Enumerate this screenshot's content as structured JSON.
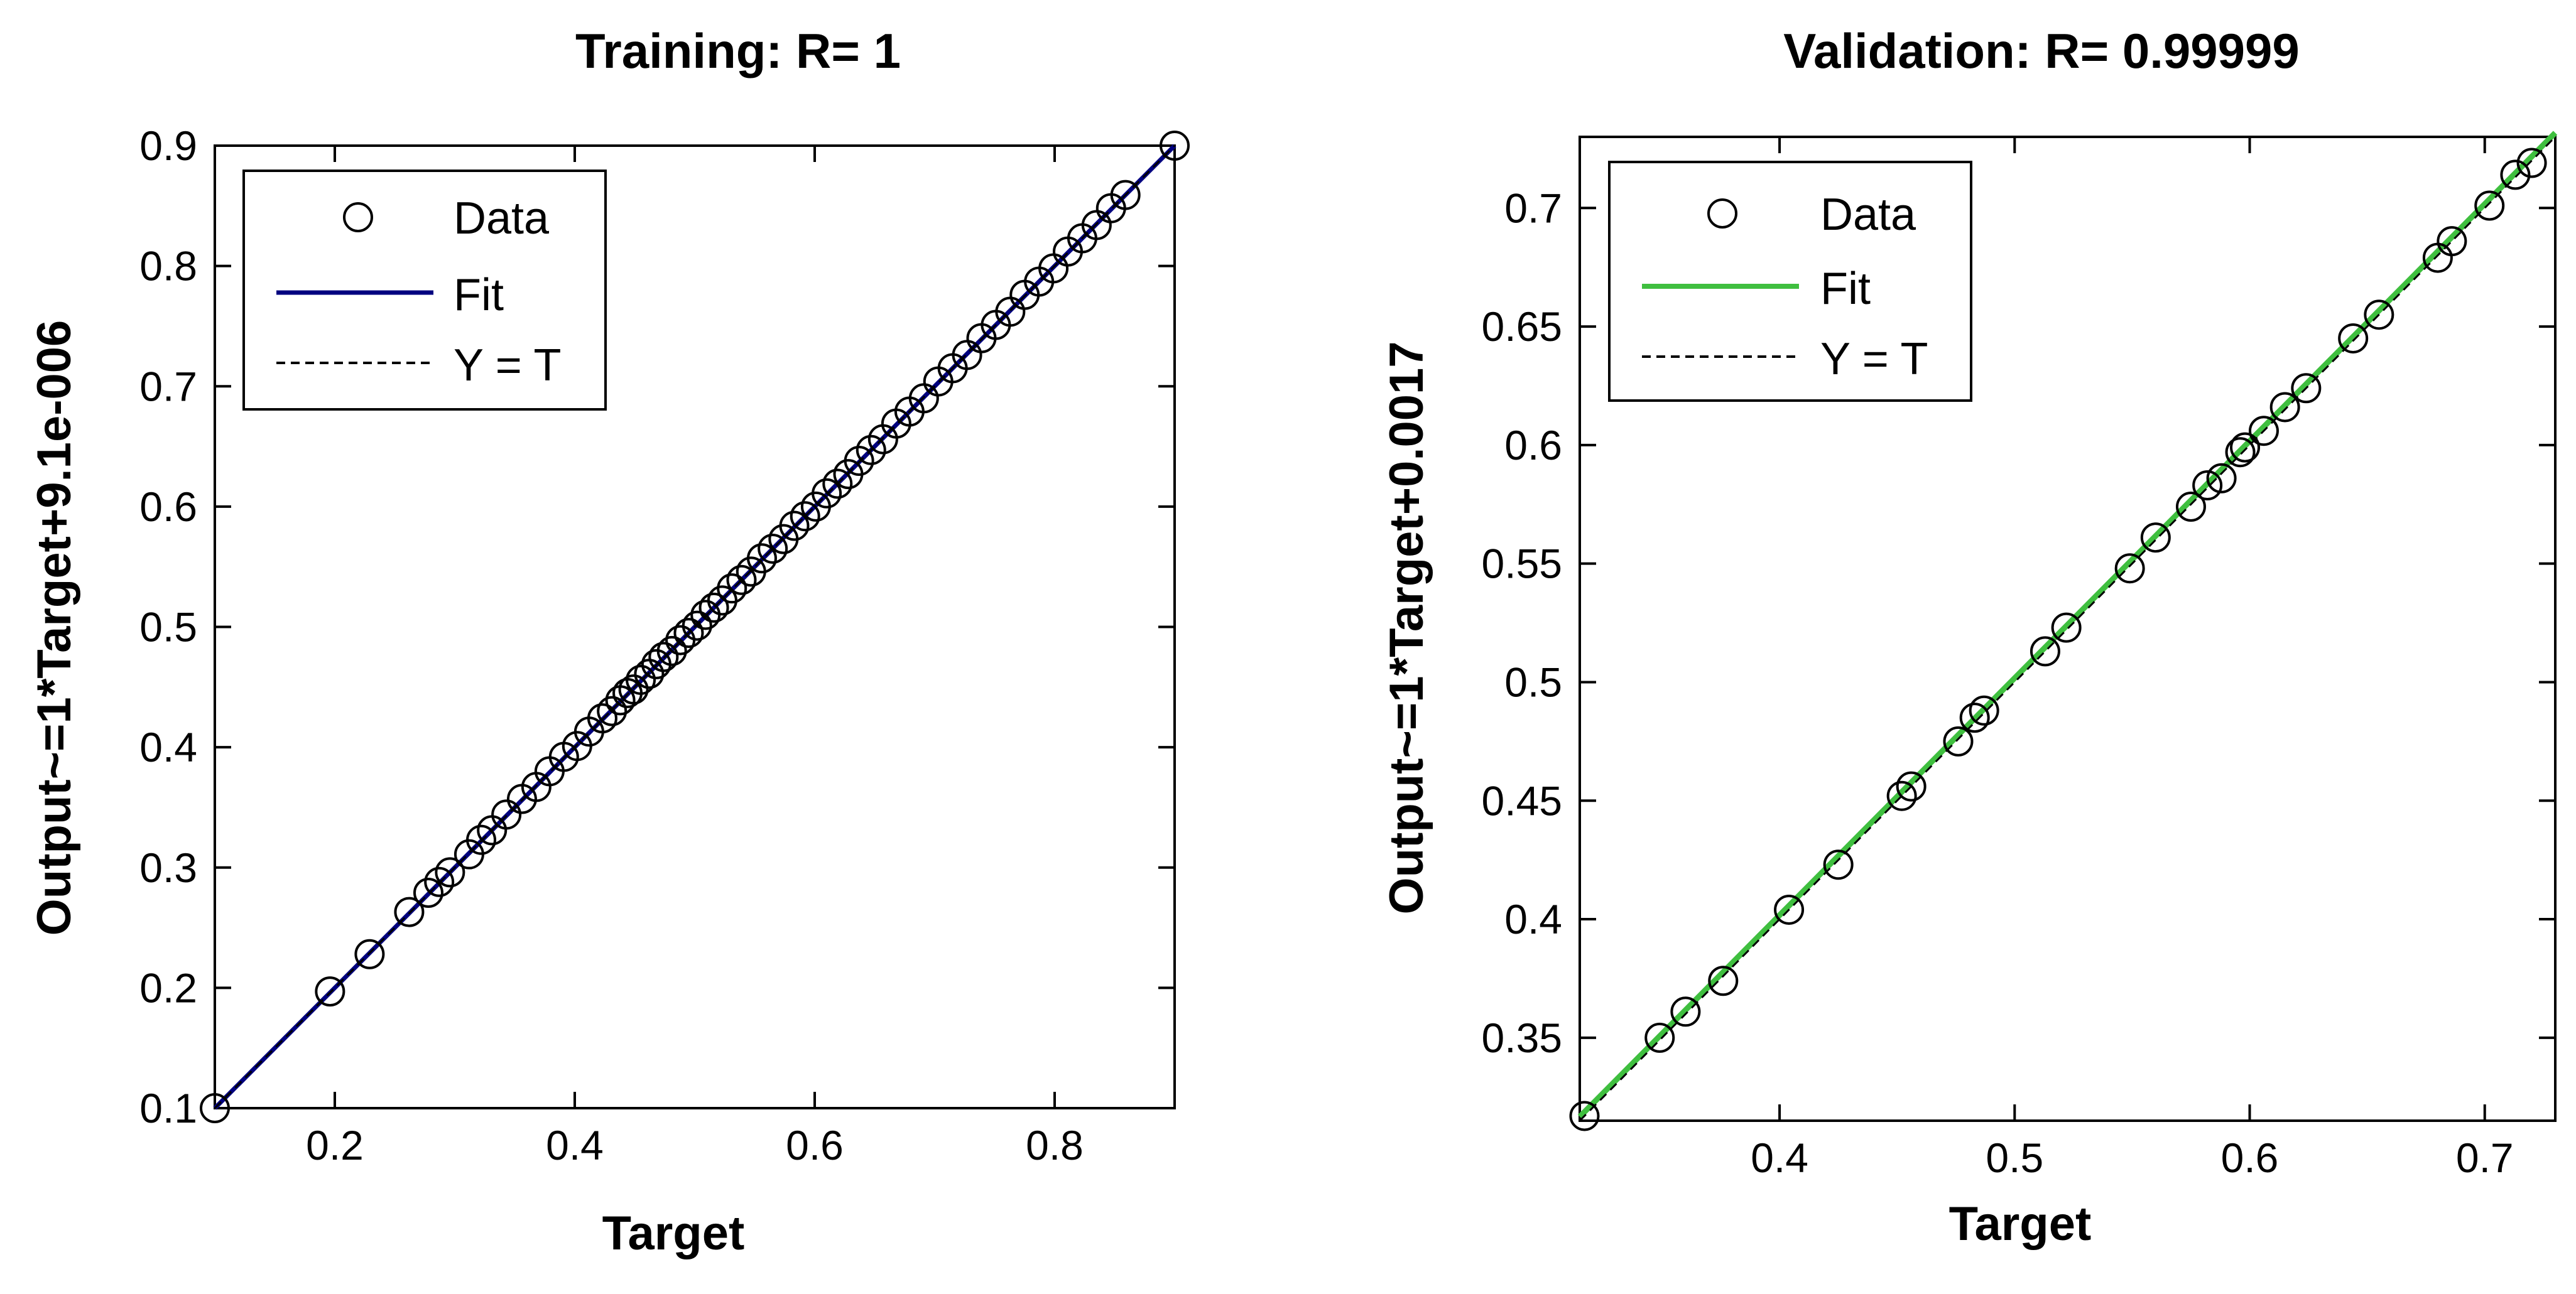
{
  "chart_data": [
    {
      "type": "scatter",
      "title": "Training: R= 1",
      "xlabel": "Target",
      "ylabel": "Output~=1*Target+9.1e-006",
      "xlim": [
        0.1,
        0.9
      ],
      "ylim": [
        0.1,
        0.9
      ],
      "xticks": [
        0.2,
        0.4,
        0.6,
        0.8
      ],
      "yticks": [
        0.1,
        0.2,
        0.3,
        0.4,
        0.5,
        0.6,
        0.7,
        0.8,
        0.9
      ],
      "fit_color": "#00007f",
      "fit_line": {
        "slope": 1,
        "intercept": 9.1e-06
      },
      "legend": [
        {
          "label": "Data",
          "marker": "circle"
        },
        {
          "label": "Fit",
          "marker": "solid-line"
        },
        {
          "label": "Y = T",
          "marker": "dashed-line"
        }
      ],
      "legend_location": "top-left",
      "points": [
        [
          0.1,
          0.1
        ],
        [
          0.196,
          0.197
        ],
        [
          0.229,
          0.228
        ],
        [
          0.262,
          0.263
        ],
        [
          0.278,
          0.279
        ],
        [
          0.287,
          0.288
        ],
        [
          0.296,
          0.296
        ],
        [
          0.312,
          0.311
        ],
        [
          0.322,
          0.323
        ],
        [
          0.331,
          0.331
        ],
        [
          0.343,
          0.344
        ],
        [
          0.356,
          0.357
        ],
        [
          0.368,
          0.367
        ],
        [
          0.379,
          0.38
        ],
        [
          0.391,
          0.392
        ],
        [
          0.402,
          0.401
        ],
        [
          0.412,
          0.413
        ],
        [
          0.423,
          0.424
        ],
        [
          0.431,
          0.43
        ],
        [
          0.438,
          0.439
        ],
        [
          0.444,
          0.445
        ],
        [
          0.449,
          0.448
        ],
        [
          0.455,
          0.456
        ],
        [
          0.462,
          0.461
        ],
        [
          0.468,
          0.469
        ],
        [
          0.474,
          0.475
        ],
        [
          0.481,
          0.48
        ],
        [
          0.488,
          0.489
        ],
        [
          0.495,
          0.495
        ],
        [
          0.502,
          0.501
        ],
        [
          0.509,
          0.51
        ],
        [
          0.516,
          0.516
        ],
        [
          0.523,
          0.522
        ],
        [
          0.531,
          0.532
        ],
        [
          0.539,
          0.539
        ],
        [
          0.547,
          0.546
        ],
        [
          0.556,
          0.557
        ],
        [
          0.565,
          0.565
        ],
        [
          0.574,
          0.573
        ],
        [
          0.583,
          0.584
        ],
        [
          0.592,
          0.592
        ],
        [
          0.601,
          0.6
        ],
        [
          0.61,
          0.611
        ],
        [
          0.619,
          0.619
        ],
        [
          0.628,
          0.627
        ],
        [
          0.637,
          0.638
        ],
        [
          0.647,
          0.647
        ],
        [
          0.657,
          0.656
        ],
        [
          0.668,
          0.669
        ],
        [
          0.679,
          0.679
        ],
        [
          0.691,
          0.69
        ],
        [
          0.703,
          0.704
        ],
        [
          0.715,
          0.715
        ],
        [
          0.727,
          0.726
        ],
        [
          0.739,
          0.74
        ],
        [
          0.751,
          0.751
        ],
        [
          0.763,
          0.762
        ],
        [
          0.775,
          0.776
        ],
        [
          0.787,
          0.787
        ],
        [
          0.799,
          0.798
        ],
        [
          0.811,
          0.812
        ],
        [
          0.823,
          0.823
        ],
        [
          0.835,
          0.834
        ],
        [
          0.847,
          0.848
        ],
        [
          0.859,
          0.859
        ],
        [
          0.9,
          0.9
        ]
      ]
    },
    {
      "type": "scatter",
      "title": "Validation:  R= 0.99999",
      "xlabel": "Target",
      "ylabel": "Output~=1*Target+0.0017",
      "xlim": [
        0.315,
        0.73
      ],
      "ylim": [
        0.315,
        0.73
      ],
      "xticks": [
        0.4,
        0.5,
        0.6,
        0.7
      ],
      "yticks": [
        0.35,
        0.4,
        0.45,
        0.5,
        0.55,
        0.6,
        0.65,
        0.7
      ],
      "fit_color": "#3fbf3f",
      "fit_line": {
        "slope": 1,
        "intercept": 0.0017
      },
      "legend": [
        {
          "label": "Data",
          "marker": "circle"
        },
        {
          "label": "Fit",
          "marker": "solid-line"
        },
        {
          "label": "Y = T",
          "marker": "dashed-line"
        }
      ],
      "legend_location": "top-left",
      "points": [
        [
          0.317,
          0.317
        ],
        [
          0.349,
          0.35
        ],
        [
          0.36,
          0.361
        ],
        [
          0.376,
          0.374
        ],
        [
          0.404,
          0.404
        ],
        [
          0.425,
          0.423
        ],
        [
          0.452,
          0.452
        ],
        [
          0.456,
          0.456
        ],
        [
          0.476,
          0.475
        ],
        [
          0.483,
          0.485
        ],
        [
          0.487,
          0.488
        ],
        [
          0.513,
          0.513
        ],
        [
          0.522,
          0.523
        ],
        [
          0.549,
          0.548
        ],
        [
          0.56,
          0.561
        ],
        [
          0.575,
          0.574
        ],
        [
          0.582,
          0.583
        ],
        [
          0.588,
          0.586
        ],
        [
          0.596,
          0.597
        ],
        [
          0.598,
          0.599
        ],
        [
          0.606,
          0.606
        ],
        [
          0.615,
          0.616
        ],
        [
          0.624,
          0.624
        ],
        [
          0.644,
          0.645
        ],
        [
          0.655,
          0.655
        ],
        [
          0.68,
          0.679
        ],
        [
          0.686,
          0.686
        ],
        [
          0.702,
          0.701
        ],
        [
          0.713,
          0.714
        ],
        [
          0.72,
          0.719
        ]
      ]
    }
  ]
}
